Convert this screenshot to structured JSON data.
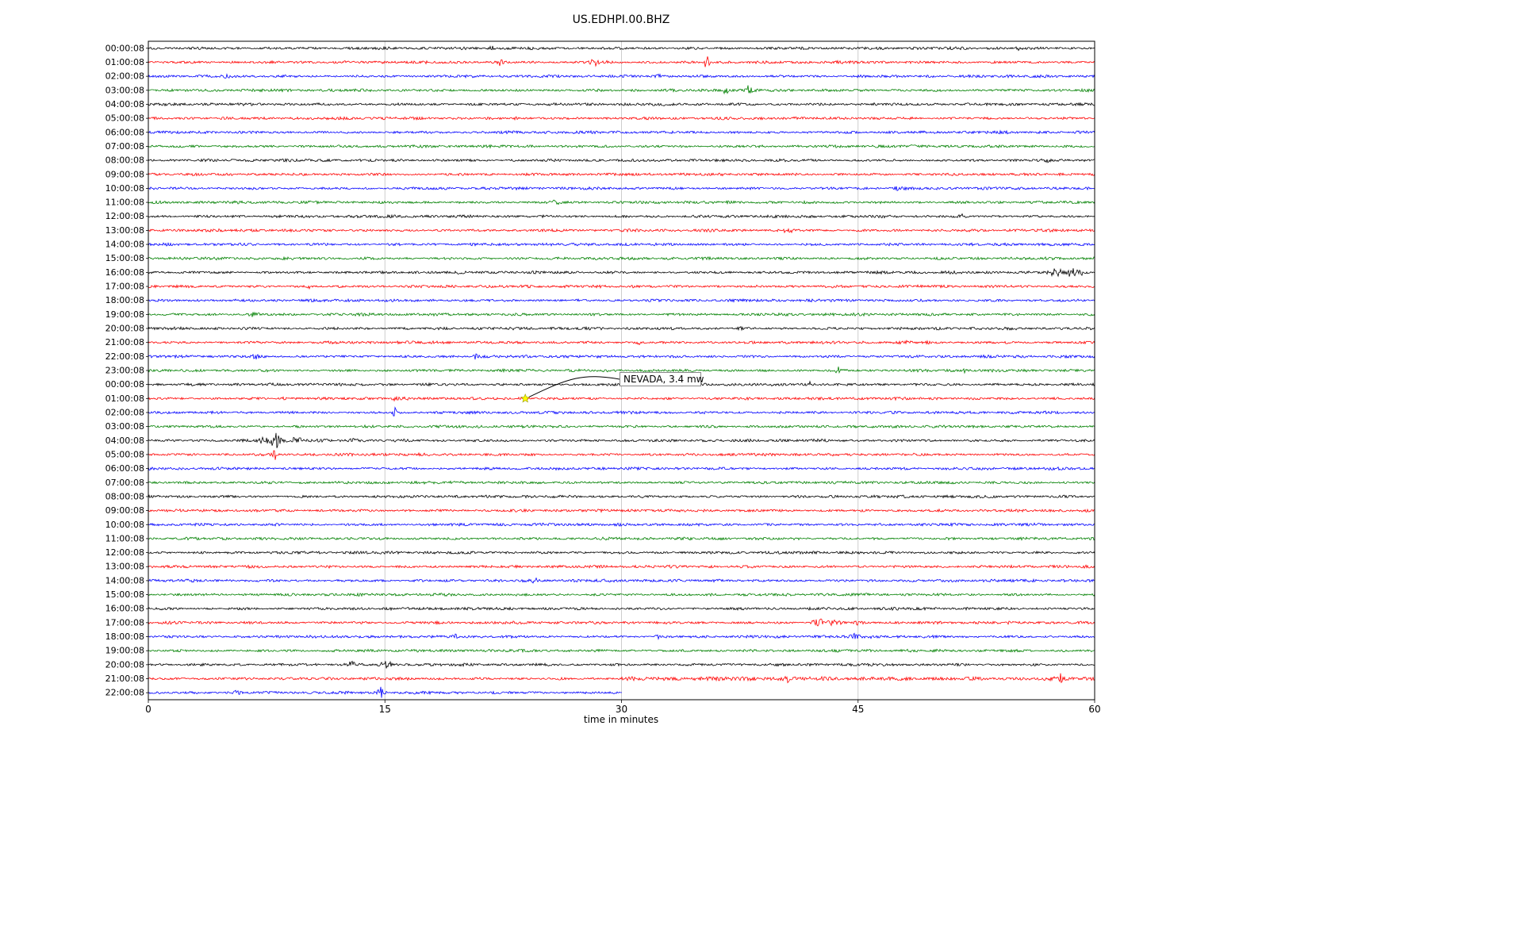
{
  "chart_data": {
    "type": "line",
    "title": "US.EDHPI.00.BHZ",
    "xlabel": "time in minutes",
    "x_ticks": [
      0,
      15,
      30,
      45,
      60
    ],
    "x_range": [
      0,
      60
    ],
    "grid": true,
    "colors": {
      "cycle": [
        "#000000",
        "#ff0000",
        "#0000ff",
        "#008000"
      ],
      "grid_line": "#c8c8c8",
      "frame": "#000000",
      "annotation_marker": "#ffff00",
      "annotation_box_border": "#888888"
    },
    "annotation": {
      "text": "NEVADA, 3.4 mw",
      "row": 25,
      "minute": 23.9
    },
    "rows": [
      {
        "label": "00:00:08",
        "duration": 60,
        "events": [
          [
            21.8,
            2,
            0.15
          ],
          [
            55.2,
            2,
            0.15
          ]
        ]
      },
      {
        "label": "01:00:08",
        "duration": 60,
        "events": [
          [
            22.3,
            3,
            0.2
          ],
          [
            28.3,
            3.5,
            0.35
          ],
          [
            29.3,
            3,
            0.2
          ],
          [
            35.4,
            9,
            0.15
          ]
        ]
      },
      {
        "label": "02:00:08",
        "duration": 60,
        "events": [
          [
            5,
            1.5,
            0.3
          ],
          [
            32.3,
            2,
            0.2
          ]
        ]
      },
      {
        "label": "03:00:08",
        "duration": 60,
        "events": [
          [
            36.6,
            7,
            0.12
          ],
          [
            38.1,
            7,
            0.12
          ]
        ]
      },
      {
        "label": "04:00:08",
        "duration": 60,
        "events": [
          [
            46,
            1.5,
            0.2
          ]
        ]
      },
      {
        "label": "05:00:08",
        "duration": 60,
        "events": [
          [
            23.3,
            2,
            0.12
          ]
        ]
      },
      {
        "label": "06:00:08",
        "duration": 60,
        "events": []
      },
      {
        "label": "07:00:08",
        "duration": 60,
        "events": []
      },
      {
        "label": "08:00:08",
        "duration": 60,
        "events": [
          [
            57,
            1.8,
            0.2
          ]
        ]
      },
      {
        "label": "09:00:08",
        "duration": 60,
        "events": []
      },
      {
        "label": "10:00:08",
        "duration": 60,
        "events": [
          [
            47.5,
            1.5,
            0.15
          ]
        ]
      },
      {
        "label": "11:00:08",
        "duration": 60,
        "events": [
          [
            25.8,
            2,
            0.3
          ]
        ]
      },
      {
        "label": "12:00:08",
        "duration": 60,
        "events": [
          [
            51.5,
            2.2,
            0.2
          ]
        ]
      },
      {
        "label": "13:00:08",
        "duration": 60,
        "events": [
          [
            40.5,
            2,
            0.4
          ]
        ]
      },
      {
        "label": "14:00:08",
        "duration": 60,
        "events": []
      },
      {
        "label": "15:00:08",
        "duration": 60,
        "events": []
      },
      {
        "label": "16:00:08",
        "duration": 60,
        "events": [
          [
            57.5,
            4,
            0.5
          ],
          [
            58.5,
            5,
            0.4
          ],
          [
            59.2,
            3,
            0.3
          ]
        ]
      },
      {
        "label": "17:00:08",
        "duration": 60,
        "events": [
          [
            10.2,
            2,
            0.15
          ],
          [
            30.8,
            2,
            0.1
          ]
        ]
      },
      {
        "label": "18:00:08",
        "duration": 60,
        "events": []
      },
      {
        "label": "19:00:08",
        "duration": 60,
        "events": [
          [
            6.7,
            2,
            0.3
          ]
        ]
      },
      {
        "label": "20:00:08",
        "duration": 60,
        "events": [
          [
            37.4,
            2,
            0.2
          ]
        ]
      },
      {
        "label": "21:00:08",
        "duration": 60,
        "events": [
          [
            31.1,
            2,
            0.15
          ],
          [
            48.2,
            2.5,
            0.12
          ],
          [
            49.4,
            2,
            0.12
          ]
        ]
      },
      {
        "label": "22:00:08",
        "duration": 60,
        "events": [
          [
            6.8,
            3,
            0.15
          ],
          [
            20.8,
            3,
            0.2
          ]
        ]
      },
      {
        "label": "23:00:08",
        "duration": 60,
        "events": [
          [
            43.7,
            4,
            0.12
          ],
          [
            51.7,
            2.5,
            0.15
          ]
        ]
      },
      {
        "label": "00:00:08",
        "duration": 60,
        "events": [
          [
            41.9,
            3.5,
            0.12
          ]
        ]
      },
      {
        "label": "01:00:08",
        "duration": 60,
        "events": [
          [
            8.6,
            2.5,
            0.1
          ],
          [
            15.6,
            5,
            0.1
          ],
          [
            23.9,
            2,
            0.15
          ]
        ]
      },
      {
        "label": "02:00:08",
        "duration": 60,
        "events": [
          [
            15.6,
            6,
            0.1
          ]
        ]
      },
      {
        "label": "03:00:08",
        "duration": 60,
        "events": []
      },
      {
        "label": "04:00:08",
        "duration": 60,
        "events": [
          [
            7.6,
            5,
            0.5
          ],
          [
            8.1,
            7,
            0.3
          ],
          [
            9.4,
            4,
            0.4
          ],
          [
            13,
            2,
            0.2
          ]
        ]
      },
      {
        "label": "05:00:08",
        "duration": 60,
        "events": [
          [
            8.0,
            7,
            0.1
          ]
        ]
      },
      {
        "label": "06:00:08",
        "duration": 60,
        "events": []
      },
      {
        "label": "07:00:08",
        "duration": 60,
        "events": []
      },
      {
        "label": "08:00:08",
        "duration": 60,
        "events": []
      },
      {
        "label": "09:00:08",
        "duration": 60,
        "events": []
      },
      {
        "label": "10:00:08",
        "duration": 60,
        "events": []
      },
      {
        "label": "11:00:08",
        "duration": 60,
        "events": []
      },
      {
        "label": "12:00:08",
        "duration": 60,
        "events": []
      },
      {
        "label": "13:00:08",
        "duration": 60,
        "events": []
      },
      {
        "label": "14:00:08",
        "duration": 60,
        "events": [
          [
            24.5,
            2,
            0.2
          ],
          [
            36,
            2,
            0.2
          ]
        ]
      },
      {
        "label": "15:00:08",
        "duration": 60,
        "events": []
      },
      {
        "label": "16:00:08",
        "duration": 60,
        "events": []
      },
      {
        "label": "17:00:08",
        "duration": 60,
        "events": [
          [
            42.5,
            4,
            0.4
          ],
          [
            43.5,
            3.5,
            0.35
          ],
          [
            45,
            2,
            0.3
          ]
        ]
      },
      {
        "label": "18:00:08",
        "duration": 60,
        "events": [
          [
            10.3,
            2.5,
            0.2
          ],
          [
            19.5,
            2.5,
            0.2
          ],
          [
            32.3,
            2,
            0.15
          ],
          [
            44.8,
            3.5,
            0.25
          ],
          [
            46,
            2.5,
            0.2
          ]
        ]
      },
      {
        "label": "19:00:08",
        "duration": 60,
        "events": []
      },
      {
        "label": "20:00:08",
        "duration": 60,
        "events": [
          [
            12.9,
            3.5,
            0.25
          ],
          [
            15.1,
            3.5,
            0.3
          ]
        ]
      },
      {
        "label": "21:00:08",
        "duration": 60,
        "events": [
          [
            40.5,
            2.5,
            0.15
          ],
          [
            50.7,
            2,
            0.12
          ],
          [
            57.8,
            6,
            0.12
          ]
        ],
        "amp_segments": [
          [
            30,
            60,
            1.5
          ]
        ]
      },
      {
        "label": "22:00:08",
        "duration": 30,
        "events": [
          [
            5.6,
            3,
            0.2
          ],
          [
            14.7,
            6,
            0.2
          ]
        ]
      }
    ]
  }
}
